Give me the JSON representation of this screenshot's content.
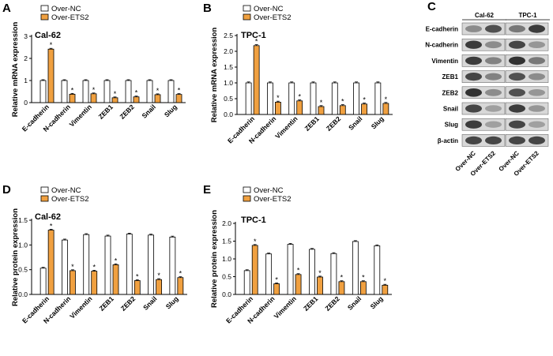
{
  "colors": {
    "nc": "#ffffff",
    "ets2": "#f0a040",
    "axis": "#000000"
  },
  "chart_data": [
    {
      "panel": "A",
      "type": "bar",
      "title": "Cal-62",
      "ylabel": "Relative mRNA expression",
      "ylim": [
        0,
        3
      ],
      "yticks": [
        "0",
        "1",
        "2",
        "3"
      ],
      "categories": [
        "E-cadherin",
        "N-cadherin",
        "Vimentin",
        "ZEB1",
        "ZEB2",
        "Snail",
        "Slug"
      ],
      "series": [
        {
          "name": "Over-NC",
          "values": [
            1.0,
            1.0,
            1.0,
            1.0,
            1.0,
            1.0,
            1.0
          ]
        },
        {
          "name": "Over-ETS2",
          "values": [
            2.42,
            0.38,
            0.4,
            0.22,
            0.26,
            0.36,
            0.37
          ]
        }
      ],
      "significance": [
        "*",
        "*",
        "*",
        "*",
        "*",
        "*",
        "*"
      ]
    },
    {
      "panel": "B",
      "type": "bar",
      "title": "TPC-1",
      "ylabel": "Relative mRNA expression",
      "ylim": [
        0,
        2.5
      ],
      "yticks": [
        "0.0",
        "0.5",
        "1.0",
        "1.5",
        "2.0",
        "2.5"
      ],
      "categories": [
        "E-cadherin",
        "N-cadherin",
        "Vimentin",
        "ZEB1",
        "ZEB2",
        "Snail",
        "Slug"
      ],
      "series": [
        {
          "name": "Over-NC",
          "values": [
            1.0,
            1.0,
            1.0,
            1.0,
            1.0,
            1.0,
            1.0
          ]
        },
        {
          "name": "Over-ETS2",
          "values": [
            2.18,
            0.39,
            0.43,
            0.25,
            0.28,
            0.33,
            0.35
          ]
        }
      ],
      "significance": [
        "*",
        "*",
        "*",
        "*",
        "*",
        "*",
        "*"
      ]
    },
    {
      "panel": "D",
      "type": "bar",
      "title": "Cal-62",
      "ylabel": "Relative protein expression",
      "ylim": [
        0,
        1.5
      ],
      "yticks": [
        "0.0",
        "0.5",
        "1.0",
        "1.5"
      ],
      "categories": [
        "E-cadherin",
        "N-cadherin",
        "Vimentin",
        "ZEB1",
        "ZEB2",
        "Snail",
        "Slug"
      ],
      "series": [
        {
          "name": "Over-NC",
          "values": [
            0.53,
            1.1,
            1.21,
            1.18,
            1.22,
            1.2,
            1.16
          ]
        },
        {
          "name": "Over-ETS2",
          "values": [
            1.3,
            0.48,
            0.47,
            0.6,
            0.28,
            0.3,
            0.34
          ]
        }
      ],
      "significance": [
        "*",
        "*",
        "*",
        "*",
        "*",
        "*",
        "*"
      ]
    },
    {
      "panel": "E",
      "type": "bar",
      "title": "TPC-1",
      "ylabel": "Relative protein expression",
      "ylim": [
        0,
        2.0
      ],
      "yticks": [
        "0.0",
        "0.5",
        "1.0",
        "1.5",
        "2.0"
      ],
      "categories": [
        "E-cadherin",
        "N-cadherin",
        "Vimentin",
        "ZEB1",
        "ZEB2",
        "Snail",
        "Slug"
      ],
      "series": [
        {
          "name": "Over-NC",
          "values": [
            0.67,
            1.14,
            1.41,
            1.27,
            1.15,
            1.49,
            1.37
          ]
        },
        {
          "name": "Over-ETS2",
          "values": [
            1.38,
            0.3,
            0.56,
            0.49,
            0.36,
            0.36,
            0.26
          ]
        }
      ],
      "significance": [
        "*",
        "*",
        "*",
        "*",
        "*",
        "*",
        "*"
      ]
    }
  ],
  "blot": {
    "panel": "C",
    "cell_lines": [
      "Cal-62",
      "TPC-1"
    ],
    "proteins": [
      "E-cadherin",
      "N-cadherin",
      "Vimentin",
      "ZEB1",
      "ZEB2",
      "Snail",
      "Slug",
      "β-actin"
    ],
    "lanes": [
      "Over-NC",
      "Over-ETS2",
      "Over-NC",
      "Over-ETS2"
    ],
    "band_intensity": [
      [
        0.45,
        0.75,
        0.55,
        0.85
      ],
      [
        0.85,
        0.45,
        0.8,
        0.4
      ],
      [
        0.85,
        0.5,
        0.9,
        0.55
      ],
      [
        0.8,
        0.5,
        0.75,
        0.45
      ],
      [
        0.9,
        0.45,
        0.75,
        0.4
      ],
      [
        0.8,
        0.35,
        0.85,
        0.4
      ],
      [
        0.85,
        0.35,
        0.8,
        0.35
      ],
      [
        0.8,
        0.8,
        0.8,
        0.8
      ]
    ]
  }
}
